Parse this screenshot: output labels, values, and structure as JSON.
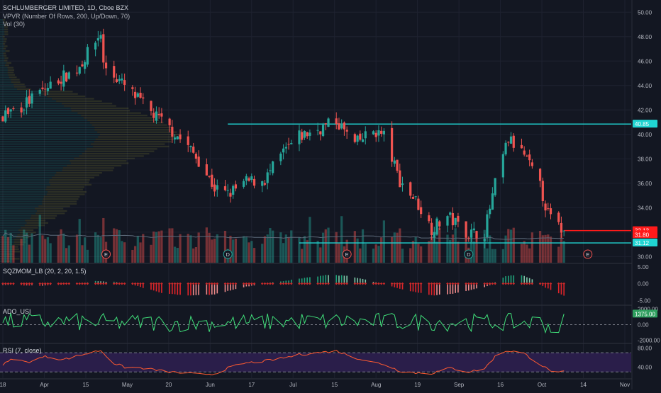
{
  "header": {
    "title": "SCHLUMBERGER LIMITED, 1D, Cboe BZX",
    "indicator_1": "VPVR (Number Of Rows, 200, Up/Down, 70)",
    "indicator_2": "Vol (30)"
  },
  "colors": {
    "background": "#131722",
    "up": "#26a69a",
    "down": "#ef5350",
    "level_line": "#20d5d2",
    "last_price_line": "#ff1a1a",
    "sqz_bright_up": "#1fa37a",
    "sqz_dim_up": "#7ec8a8",
    "sqz_bright_down": "#e0242a",
    "sqz_dim_down": "#f08a8a",
    "ado_line": "#40e07a",
    "rsi_line": "#ff5a30",
    "rsi_band": "#2a1e4a"
  },
  "chart_data": [
    {
      "type": "candlestick",
      "pane": "price",
      "ylim": [
        29.5,
        51.0
      ],
      "y_ticks": [
        "50.00",
        "48.00",
        "46.00",
        "44.00",
        "42.00",
        "40.00",
        "38.00",
        "36.00",
        "34.00",
        "32.00",
        "30.00"
      ],
      "x_ticks": [
        "18",
        "Apr",
        "15",
        "May",
        "20",
        "Jun",
        "17",
        "Jul",
        "15",
        "Aug",
        "19",
        "Sep",
        "16",
        "Oct",
        "14",
        "Nov"
      ],
      "x_range": [
        "Mar 11",
        "Nov 1"
      ],
      "close_anchors": [
        [
          "Mar 11",
          41.6
        ],
        [
          "Mar 18",
          42.3
        ],
        [
          "Mar 25",
          43.4
        ],
        [
          "Apr 1",
          44.5
        ],
        [
          "Apr 8",
          45.3
        ],
        [
          "Apr 15",
          47.6
        ],
        [
          "Apr 17",
          48.3
        ],
        [
          "Apr 18",
          45.7
        ],
        [
          "Apr 23",
          44.6
        ],
        [
          "Apr 29",
          43.3
        ],
        [
          "May 6",
          41.8
        ],
        [
          "May 13",
          40.5
        ],
        [
          "May 20",
          39.0
        ],
        [
          "May 24",
          37.9
        ],
        [
          "May 30",
          35.6
        ],
        [
          "Jun 4",
          35.1
        ],
        [
          "Jun 11",
          36.1
        ],
        [
          "Jun 18",
          36.3
        ],
        [
          "Jun 25",
          38.5
        ],
        [
          "Jul 1",
          39.8
        ],
        [
          "Jul 8",
          40.4
        ],
        [
          "Jul 15",
          41.1
        ],
        [
          "Jul 22",
          39.2
        ],
        [
          "Jul 29",
          40.3
        ],
        [
          "Aug 2",
          39.9
        ],
        [
          "Aug 8",
          36.2
        ],
        [
          "Aug 14",
          34.6
        ],
        [
          "Aug 20",
          32.3
        ],
        [
          "Aug 26",
          33.3
        ],
        [
          "Sep 3",
          31.9
        ],
        [
          "Sep 9",
          32.0
        ],
        [
          "Sep 13",
          35.9
        ],
        [
          "Sep 16",
          38.2
        ],
        [
          "Sep 18",
          39.6
        ],
        [
          "Sep 24",
          38.3
        ],
        [
          "Sep 30",
          35.7
        ],
        [
          "Oct 3",
          33.5
        ],
        [
          "Oct 7",
          32.4
        ],
        [
          "Oct 9",
          32.13
        ]
      ],
      "volume_profile_peak_price": 40.0,
      "horizontal_lines": [
        {
          "price": 40.85,
          "from": "Jun 4",
          "color": "#20d5d2"
        },
        {
          "price": 31.12,
          "from": "Jul 1",
          "color": "#20d5d2"
        },
        {
          "price": 32.13,
          "from": "Oct 9",
          "color": "#ff1a1a"
        }
      ],
      "price_labels": [
        {
          "text": "40.85",
          "price": 40.85,
          "color": "#20d5d2"
        },
        {
          "text": "32.13",
          "price": 32.13,
          "color": "#ff1a1a"
        },
        {
          "text": "31.80",
          "price": 31.8,
          "color": "#ff1a1a"
        },
        {
          "text": "31.12",
          "price": 31.12,
          "color": "#20d5d2"
        }
      ],
      "events": [
        {
          "letter": "E",
          "date": "Apr 19",
          "color": "#ef5350"
        },
        {
          "letter": "D",
          "date": "Jun 4",
          "color": "#26a69a"
        },
        {
          "letter": "E",
          "date": "Jul 19",
          "color": "#ef5350"
        },
        {
          "letter": "D",
          "date": "Sep 3",
          "color": "#26a69a"
        },
        {
          "letter": "E",
          "date": "Oct 18",
          "color": "#ef5350"
        }
      ]
    },
    {
      "type": "histogram",
      "pane": "sqzmom",
      "title": "SQZMOM_LB (20, 2, 20, 1.5)",
      "ylim": [
        -6.2,
        5.8
      ],
      "y_ticks": [
        "5.00",
        "0.00",
        "-5.00"
      ],
      "anchors": [
        [
          "Mar 11",
          -0.3
        ],
        [
          "Mar 25",
          -0.6
        ],
        [
          "Apr 8",
          0.0
        ],
        [
          "Apr 15",
          0.7
        ],
        [
          "Apr 22",
          0.5
        ],
        [
          "Apr 29",
          -0.3
        ],
        [
          "May 10",
          -2.8
        ],
        [
          "May 20",
          -3.6
        ],
        [
          "May 30",
          -3.2
        ],
        [
          "Jun 10",
          -1.0
        ],
        [
          "Jun 17",
          0.0
        ],
        [
          "Jun 28",
          1.1
        ],
        [
          "Jul 12",
          2.6
        ],
        [
          "Jul 20",
          2.3
        ],
        [
          "Aug 1",
          0.0
        ],
        [
          "Aug 8",
          -1.5
        ],
        [
          "Aug 20",
          -3.5
        ],
        [
          "Aug 28",
          -3.0
        ],
        [
          "Sep 10",
          -0.8
        ],
        [
          "Sep 17",
          2.2
        ],
        [
          "Sep 22",
          2.8
        ],
        [
          "Sep 27",
          1.3
        ],
        [
          "Oct 2",
          -1.2
        ],
        [
          "Oct 9",
          -3.5
        ]
      ]
    },
    {
      "type": "line",
      "pane": "ado",
      "title": "ADO_USI",
      "ylim": [
        -2300,
        2400
      ],
      "y_ticks": [
        "2000.00",
        "0.00",
        "-2000.00"
      ],
      "last_value_label": "1375.00",
      "anchors": [
        [
          "Mar 11",
          400
        ],
        [
          "Apr 1",
          350
        ],
        [
          "May 1",
          250
        ],
        [
          "Jun 1",
          200
        ],
        [
          "Jul 1",
          450
        ],
        [
          "Aug 1",
          400
        ],
        [
          "Sep 1",
          300
        ],
        [
          "Oct 1",
          300
        ],
        [
          "Oct 7",
          -1000
        ],
        [
          "Oct 9",
          1375
        ]
      ]
    },
    {
      "type": "line",
      "pane": "rsi",
      "title": "RSI (7, close)",
      "ylim": [
        17,
        88
      ],
      "y_ticks": [
        "80.00",
        "40.00"
      ],
      "bands": [
        70,
        30
      ],
      "anchors": [
        [
          "Mar 11",
          45
        ],
        [
          "Mar 15",
          58
        ],
        [
          "Mar 20",
          50
        ],
        [
          "Mar 27",
          62
        ],
        [
          "Apr 3",
          56
        ],
        [
          "Apr 10",
          66
        ],
        [
          "Apr 17",
          75
        ],
        [
          "Apr 22",
          48
        ],
        [
          "Apr 26",
          40
        ],
        [
          "May 3",
          38
        ],
        [
          "May 10",
          32
        ],
        [
          "May 17",
          28
        ],
        [
          "May 24",
          25
        ],
        [
          "May 30",
          26
        ],
        [
          "Jun 4",
          38
        ],
        [
          "Jun 10",
          48
        ],
        [
          "Jun 17",
          52
        ],
        [
          "Jun 24",
          58
        ],
        [
          "Jul 1",
          66
        ],
        [
          "Jul 8",
          70
        ],
        [
          "Jul 15",
          74
        ],
        [
          "Jul 22",
          60
        ],
        [
          "Jul 29",
          50
        ],
        [
          "Aug 2",
          46
        ],
        [
          "Aug 8",
          32
        ],
        [
          "Aug 14",
          28
        ],
        [
          "Aug 20",
          27
        ],
        [
          "Aug 27",
          38
        ],
        [
          "Sep 3",
          30
        ],
        [
          "Sep 9",
          37
        ],
        [
          "Sep 13",
          62
        ],
        [
          "Sep 17",
          74
        ],
        [
          "Sep 20",
          73
        ],
        [
          "Sep 24",
          68
        ],
        [
          "Sep 30",
          46
        ],
        [
          "Oct 3",
          35
        ],
        [
          "Oct 7",
          28
        ],
        [
          "Oct 9",
          30
        ]
      ]
    }
  ]
}
